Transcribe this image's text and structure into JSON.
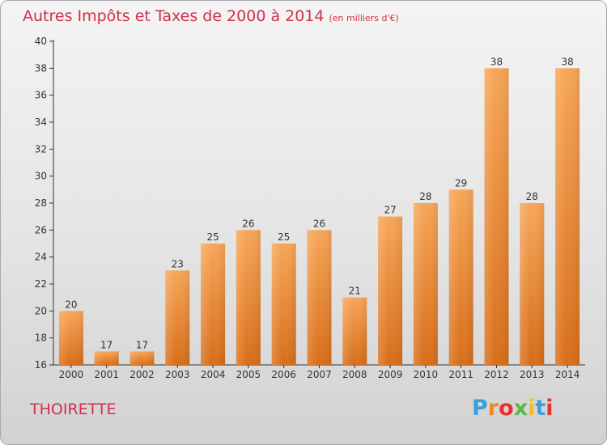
{
  "header": {
    "title": "Autres Impôts et Taxes de 2000 à 2014",
    "unit": "(en milliers d'€)"
  },
  "footer": {
    "town": "THOIRETTE",
    "logo_text": "Proxiti"
  },
  "colors": {
    "bar_light": "#f7a657",
    "bar_dark": "#d86e1a",
    "title": "#d0304a",
    "logo": [
      "#3aa0dc",
      "#f08a1e",
      "#e8322b",
      "#5ab84a",
      "#f0c020",
      "#3aa0dc",
      "#e8322b"
    ]
  },
  "chart_data": {
    "type": "bar",
    "title": "Autres Impôts et Taxes de 2000 à 2014",
    "ylabel": "(en milliers d'€)",
    "xlabel": "",
    "ylim": [
      16,
      40
    ],
    "yticks": [
      16,
      18,
      20,
      22,
      24,
      26,
      28,
      30,
      32,
      34,
      36,
      38,
      40
    ],
    "grid": false,
    "categories": [
      "2000",
      "2001",
      "2002",
      "2003",
      "2004",
      "2005",
      "2006",
      "2007",
      "2008",
      "2009",
      "2010",
      "2011",
      "2012",
      "2013",
      "2014"
    ],
    "values": [
      20,
      17,
      17,
      23,
      25,
      26,
      25,
      26,
      21,
      27,
      28,
      29,
      38,
      28,
      38
    ]
  }
}
